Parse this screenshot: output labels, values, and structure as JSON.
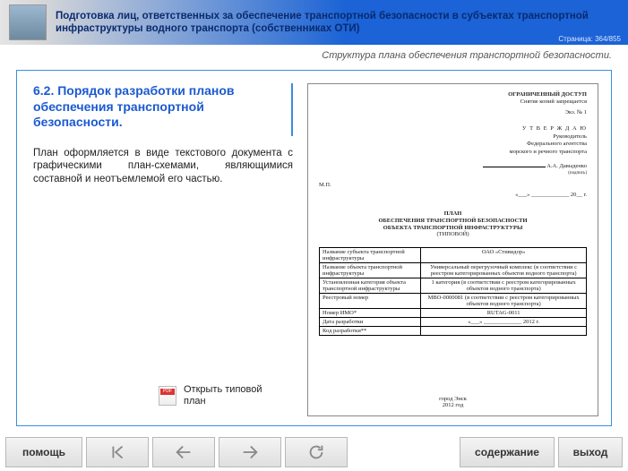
{
  "header": {
    "title": "Подготовка лиц, ответственных за обеспечение транспортной безопасности в субъектах транспортной инфраструктуры водного транспорта (собственниках ОТИ)",
    "page_counter": "Страница: 364/855"
  },
  "subtitle": "Структура плана обеспечения транспортной безопасности.",
  "section": {
    "heading": "6.2. Порядок разработки планов обеспечения транспортной безопасности.",
    "body": "План оформляется в виде текстового документа с графическими план-схемами, являющимися составной и неотъемлемой его частью.",
    "open_plan_label": "Открыть типовой план"
  },
  "doc": {
    "restricted": "ОГРАНИЧЕННЫЙ ДОСТУП",
    "copy_note": "Снятие копий запрещается",
    "copy_no": "Экз. № 1",
    "approve": "У Т В Е Р Ж Д А Ю",
    "approve_role1": "Руководитель",
    "approve_role2": "Федерального агентства",
    "approve_role3": "морского и речного транспорта",
    "signer": "А.А. Давыденко",
    "sign_caption": "(подпись)",
    "mp": "М.П.",
    "date_tpl": "«___» _____________ 20__ г.",
    "title1": "ПЛАН",
    "title2": "ОБЕСПЕЧЕНИЯ ТРАНСПОРТНОЙ БЕЗОПАСНОСТИ",
    "title3": "ОБЪЕКТА ТРАНСПОРТНОЙ ИНФРАСТРУКТУРЫ",
    "title4": "(ТИПОВОЙ)",
    "rows": [
      [
        "Название субъекта транспортной инфраструктуры",
        "ОАО «Стивидор»"
      ],
      [
        "Название объекта транспортной инфраструктуры",
        "Универсальный перегрузочный комплекс (в соответствии с реестром категорированных объектов водного транспорта)"
      ],
      [
        "Установленная категория объекта транспортной инфраструктуры",
        "1 категория (в соответствии с реестром категорированных объектов водного транспорта)"
      ],
      [
        "Реестровый номер",
        "МВО-0000081 (в соответствии с реестром категорированных объектов водного транспорта)"
      ],
      [
        "Номер ИМО*",
        "RUTAG-0011"
      ],
      [
        "Дата разработки",
        "«___» _____________ 2012 г."
      ],
      [
        "Код разработки**",
        ""
      ]
    ],
    "footer_city": "город Энск",
    "footer_year": "2012 год"
  },
  "nav": {
    "help": "помощь",
    "toc": "содержание",
    "exit": "выход"
  }
}
